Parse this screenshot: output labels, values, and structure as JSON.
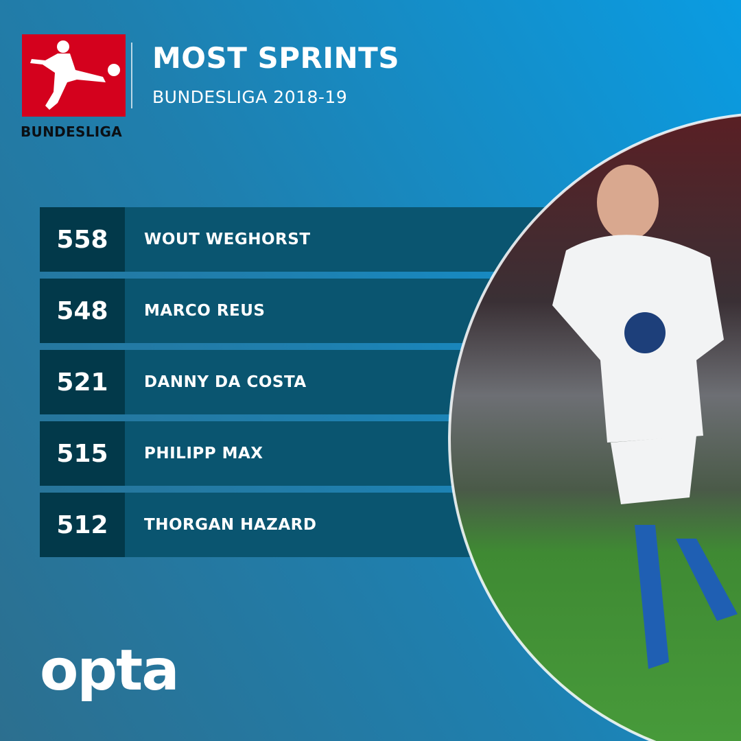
{
  "header": {
    "logo_text": "BUNDESLIGA",
    "title": "MOST SPRINTS",
    "subtitle": "BUNDESLIGA 2018-19"
  },
  "colors": {
    "logo_red": "#d4011d",
    "value_box": "#02394a",
    "name_bar": "#0a5570",
    "background": "#1f7fae"
  },
  "chart_data": {
    "type": "table",
    "title": "MOST SPRINTS",
    "subtitle": "BUNDESLIGA 2018-19",
    "rows": [
      {
        "value": "558",
        "name": "WOUT WEGHORST"
      },
      {
        "value": "548",
        "name": "MARCO REUS"
      },
      {
        "value": "521",
        "name": "DANNY DA COSTA"
      },
      {
        "value": "515",
        "name": "PHILIPP MAX"
      },
      {
        "value": "512",
        "name": "THORGAN HAZARD"
      }
    ]
  },
  "footer": {
    "brand": "opta"
  }
}
